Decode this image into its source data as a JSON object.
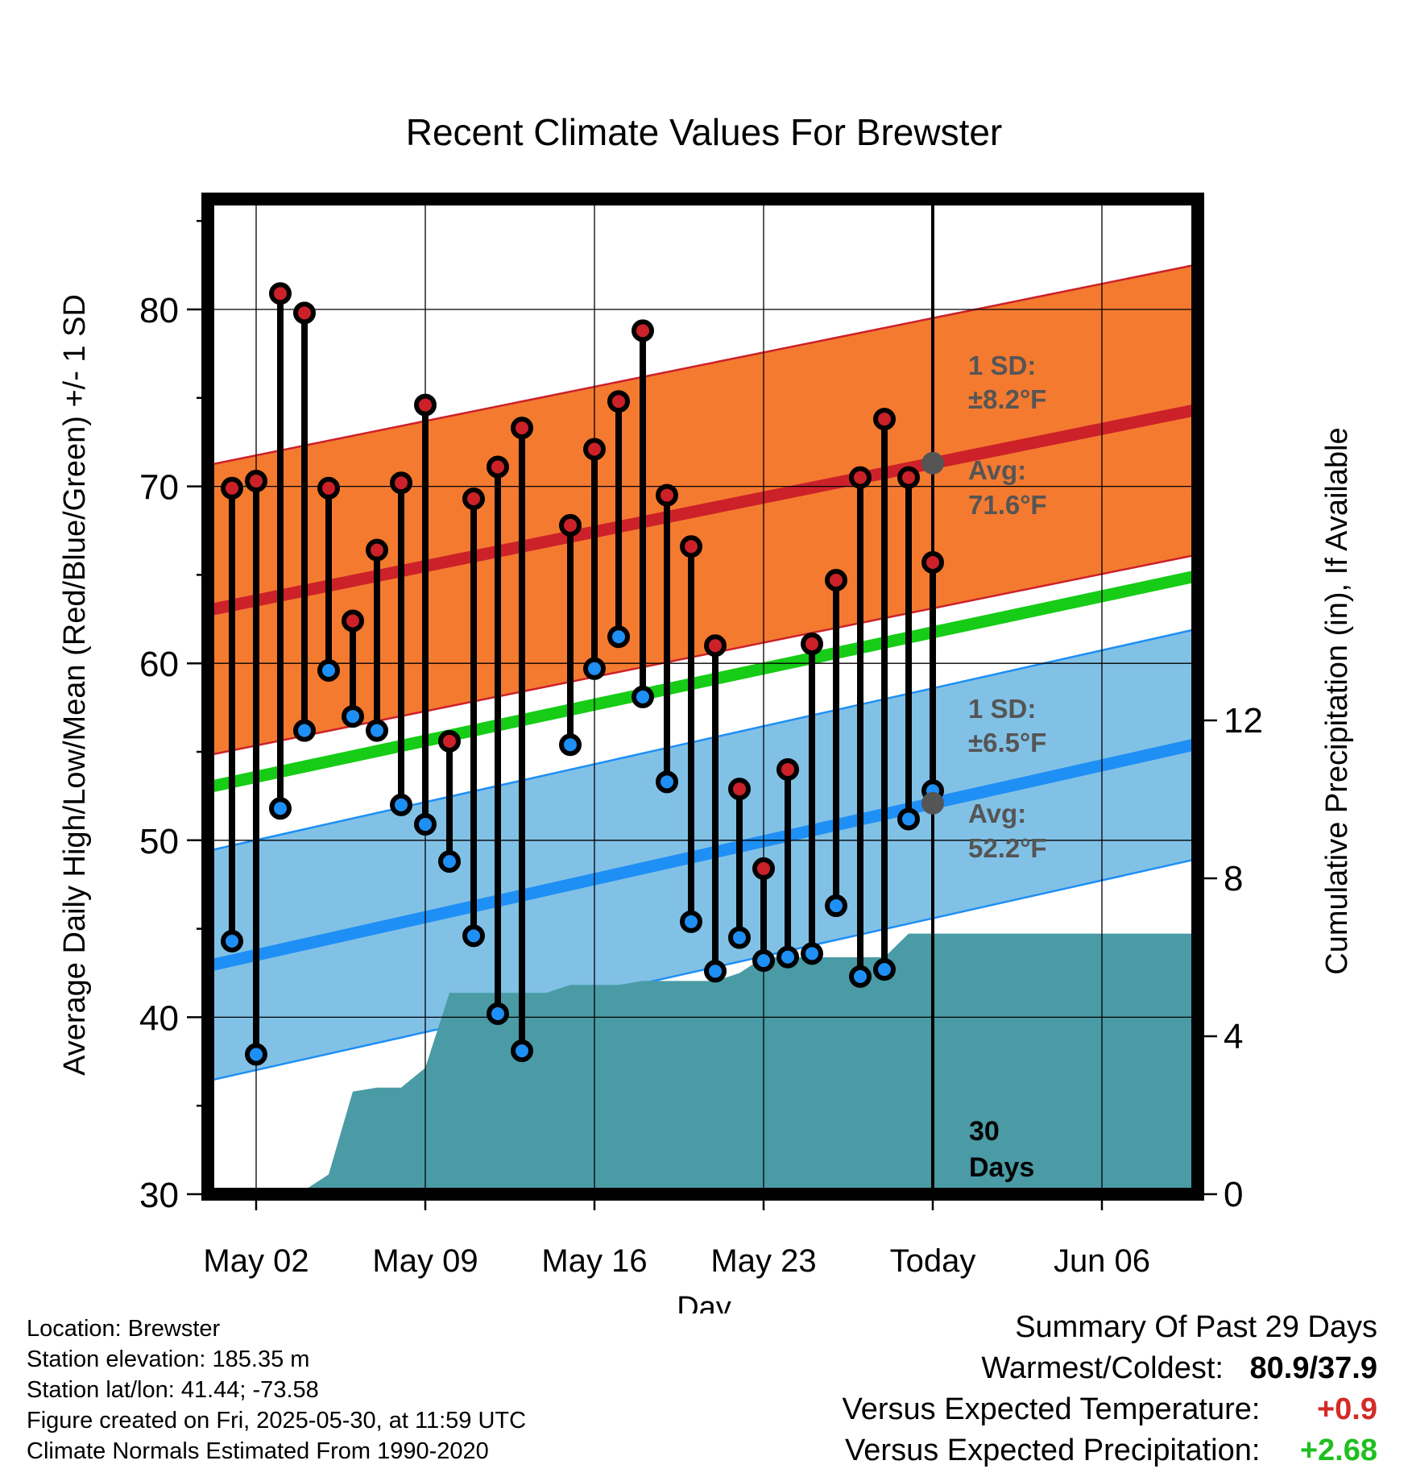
{
  "chart_data": {
    "type": "line",
    "title": "Recent Climate Values For Brewster",
    "xlabel": "Day",
    "ylabel": "Average Daily High/Low/Mean (Red/Blue/Green) +/- 1 SD",
    "y2label": "Cumulative Precipitation (in), If Available",
    "x_ticks": [
      "May 02",
      "May 09",
      "May 16",
      "May 23",
      "Today",
      "Jun 06"
    ],
    "ylim": [
      30,
      86
    ],
    "y_ticks": [
      30,
      40,
      50,
      60,
      70,
      80
    ],
    "y2lim": [
      0,
      12
    ],
    "y2_ticks": [
      0,
      4,
      8,
      12
    ],
    "daily_high": [
      69.9,
      70.3,
      80.9,
      79.8,
      69.9,
      62.4,
      66.4,
      70.2,
      74.6,
      55.6,
      69.3,
      71.1,
      73.3,
      null,
      67.8,
      72.1,
      74.8,
      78.8,
      69.5,
      66.6,
      61.0,
      52.9,
      48.4,
      54.0,
      61.1,
      64.7,
      70.5,
      73.8,
      70.5,
      65.7
    ],
    "daily_low": [
      44.3,
      37.9,
      51.8,
      56.2,
      59.6,
      57.0,
      56.2,
      52.0,
      50.9,
      48.8,
      44.6,
      40.2,
      38.1,
      null,
      55.4,
      59.7,
      61.5,
      58.1,
      53.3,
      45.4,
      42.6,
      44.5,
      43.2,
      43.4,
      43.6,
      46.3,
      42.3,
      42.7,
      51.2,
      52.8
    ],
    "normal_high_start": 63.0,
    "normal_high_end": 74.3,
    "normal_high_sd": 8.2,
    "normal_low_start": 42.9,
    "normal_low_end": 55.4,
    "normal_low_sd": 6.5,
    "normal_mean_start": 53.0,
    "normal_mean_end": 64.9,
    "cumulative_precip": [
      0,
      0,
      0,
      0.1,
      0.5,
      2.6,
      2.7,
      2.7,
      3.2,
      5.1,
      5.1,
      5.1,
      5.1,
      5.1,
      5.3,
      5.3,
      5.3,
      5.4,
      5.4,
      5.4,
      5.4,
      5.6,
      6.0,
      6.0,
      6.0,
      6.0,
      6.0,
      6.0,
      6.6,
      6.6,
      6.6
    ],
    "high_label": {
      "sd": "1 SD:",
      "sd_val": "±8.2°F",
      "avg": "Avg:",
      "avg_val": "71.6°F"
    },
    "low_label": {
      "sd": "1 SD:",
      "sd_val": "±6.5°F",
      "avg": "Avg:",
      "avg_val": "52.2°F"
    },
    "period_label": [
      "30",
      "Days"
    ]
  },
  "colors": {
    "high_band": "#f47a30",
    "high_line": "#cc2129",
    "low_band": "#82c1e6",
    "low_line": "#1e8ff5",
    "mean_line": "#16cc16",
    "precip": "#4a9ba5",
    "positive_temp": "#d32b27",
    "positive_precip": "#1fbf1f"
  },
  "footer": {
    "location": "Location: Brewster",
    "elevation": "Station elevation: 185.35 m",
    "latlon": "Station lat/lon: 41.44; -73.58",
    "created": "Figure created on Fri, 2025-05-30, at 11:59 UTC",
    "normals": "Climate Normals Estimated From 1990-2020"
  },
  "summary": {
    "title": "Summary Of Past 29 Days",
    "warmest_coldest_label": "Warmest/Coldest:",
    "warmest_coldest_value": "80.9/37.9",
    "temp_label": "Versus Expected Temperature:",
    "temp_value": "+0.9",
    "precip_label": "Versus Expected Precipitation:",
    "precip_value": "+2.68"
  }
}
